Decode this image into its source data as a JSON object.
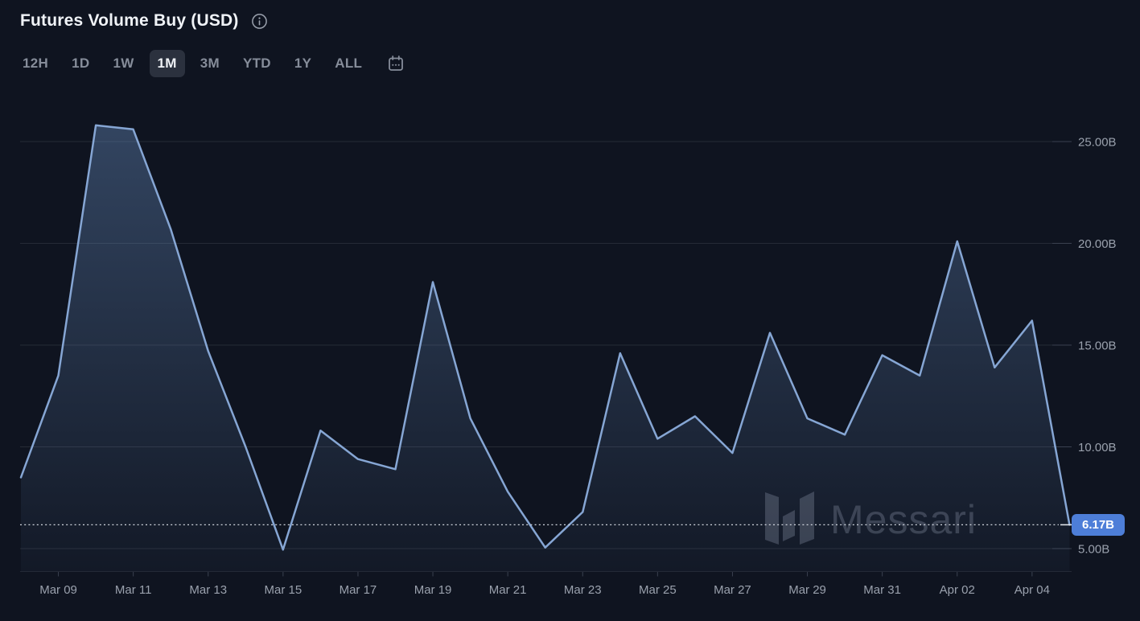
{
  "header": {
    "title": "Futures Volume Buy (USD)",
    "info_icon": "info-icon"
  },
  "tabs": {
    "items": [
      "12H",
      "1D",
      "1W",
      "1M",
      "3M",
      "YTD",
      "1Y",
      "ALL"
    ],
    "active": "1M",
    "calendar_icon": "calendar-icon"
  },
  "watermark": {
    "text": "Messari",
    "logo_icon": "messari-logo-icon"
  },
  "colors": {
    "background": "#0f1420",
    "line": "#86a6d4",
    "area_top": "rgba(110,150,204,0.38)",
    "area_bottom": "rgba(110,150,204,0.04)",
    "gridline": "#262b36",
    "axis_label": "#9aa1ad",
    "badge": "#4d7ed8",
    "dotted_line": "#d0d5dd",
    "tab_inactive": "#868d9a",
    "tab_active_bg": "#2b313e"
  },
  "chart_data": {
    "type": "area",
    "title": "Futures Volume Buy (USD)",
    "ylabel": "",
    "xlabel": "",
    "unit": "USD (billions)",
    "grid": "horizontal",
    "legend": "none",
    "ylim_gridlines": [
      5,
      25
    ],
    "x": [
      "Mar 08",
      "Mar 09",
      "Mar 10",
      "Mar 11",
      "Mar 12",
      "Mar 13",
      "Mar 14",
      "Mar 15",
      "Mar 16",
      "Mar 17",
      "Mar 18",
      "Mar 19",
      "Mar 20",
      "Mar 21",
      "Mar 22",
      "Mar 23",
      "Mar 24",
      "Mar 25",
      "Mar 26",
      "Mar 27",
      "Mar 28",
      "Mar 29",
      "Mar 30",
      "Mar 31",
      "Apr 01",
      "Apr 02",
      "Apr 03",
      "Apr 04",
      "Apr 05"
    ],
    "values": [
      8.5,
      13.5,
      25.8,
      25.6,
      20.7,
      14.7,
      10.0,
      4.95,
      10.8,
      9.4,
      8.9,
      18.1,
      11.4,
      7.8,
      5.05,
      6.8,
      14.6,
      10.4,
      11.5,
      9.7,
      15.6,
      11.4,
      10.6,
      14.5,
      13.5,
      20.1,
      13.9,
      16.2,
      6.17
    ],
    "y_ticks": [
      {
        "value": 25,
        "label": "25.00B"
      },
      {
        "value": 20,
        "label": "20.00B"
      },
      {
        "value": 15,
        "label": "15.00B"
      },
      {
        "value": 10,
        "label": "10.00B"
      },
      {
        "value": 5,
        "label": "5.00B"
      }
    ],
    "x_tick_labels": [
      {
        "label": "Mar 09",
        "index": 1
      },
      {
        "label": "Mar 11",
        "index": 3
      },
      {
        "label": "Mar 13",
        "index": 5
      },
      {
        "label": "Mar 15",
        "index": 7
      },
      {
        "label": "Mar 17",
        "index": 9
      },
      {
        "label": "Mar 19",
        "index": 11
      },
      {
        "label": "Mar 21",
        "index": 13
      },
      {
        "label": "Mar 23",
        "index": 15
      },
      {
        "label": "Mar 25",
        "index": 17
      },
      {
        "label": "Mar 27",
        "index": 19
      },
      {
        "label": "Mar 29",
        "index": 21
      },
      {
        "label": "Mar 31",
        "index": 23
      },
      {
        "label": "Apr 02",
        "index": 25
      },
      {
        "label": "Apr 04",
        "index": 27
      }
    ],
    "current": {
      "value": 6.17,
      "label": "6.17B"
    }
  }
}
